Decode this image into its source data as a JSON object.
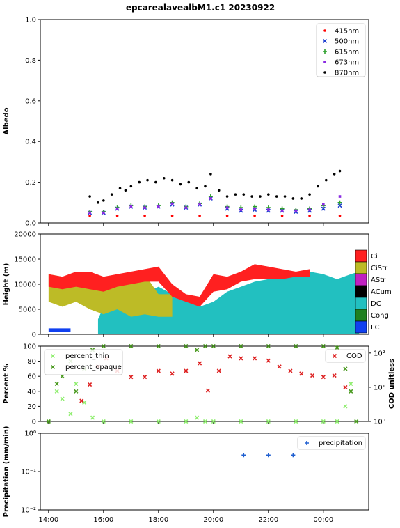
{
  "title": "epcarealavealbM1.c1 20230922",
  "colors": {
    "c415": "#ff0000",
    "c500": "#1f3fd0",
    "c615": "#2ca02c",
    "c673": "#8a2be2",
    "c870": "#000000",
    "ci": "#ff2020",
    "cistr": "#bdbb26",
    "astr": "#c020c0",
    "acum": "#000000",
    "dc": "#22c0c0",
    "cong": "#1e8020",
    "lc": "#1040f0",
    "thin": "#90ee70",
    "opaque": "#4a9a20",
    "cod": "#dd1f1f",
    "precip": "#1f5fd0"
  },
  "chart_data": [
    {
      "type": "scatter",
      "ylabel": "Albedo",
      "ylim": [
        0.0,
        1.0
      ],
      "yticks": [
        "0.0",
        "0.2",
        "0.4",
        "0.6",
        "0.8",
        "1.0"
      ],
      "legend": {
        "placement": "top-right",
        "entries": [
          "415nm",
          "500nm",
          "615nm",
          "673nm",
          "870nm"
        ]
      },
      "series": [
        {
          "name": "415nm",
          "marker": "dot",
          "x": [
            15.5,
            16.5,
            17.5,
            18.5,
            19.5,
            20.5,
            21.5,
            22.5,
            23.5,
            24.6
          ],
          "y": [
            0.035,
            0.035,
            0.035,
            0.035,
            0.035,
            0.035,
            0.035,
            0.035,
            0.035,
            0.035
          ]
        },
        {
          "name": "500nm",
          "marker": "x",
          "x": [
            15.5,
            16.0,
            16.5,
            17.0,
            17.5,
            18.0,
            18.5,
            19.0,
            19.5,
            19.9,
            20.5,
            21.0,
            21.5,
            22.0,
            22.5,
            23.0,
            23.5,
            24.0,
            24.6
          ],
          "y": [
            0.05,
            0.05,
            0.07,
            0.08,
            0.075,
            0.08,
            0.09,
            0.075,
            0.09,
            0.12,
            0.07,
            0.06,
            0.065,
            0.06,
            0.06,
            0.055,
            0.06,
            0.07,
            0.085
          ]
        },
        {
          "name": "615nm",
          "marker": "plus",
          "x": [
            15.5,
            16.0,
            16.5,
            17.0,
            17.5,
            18.0,
            18.5,
            19.0,
            19.5,
            19.9,
            20.5,
            21.0,
            21.5,
            22.0,
            22.5,
            23.0,
            23.5,
            24.0,
            24.6
          ],
          "y": [
            0.055,
            0.055,
            0.075,
            0.085,
            0.08,
            0.085,
            0.1,
            0.08,
            0.095,
            0.13,
            0.08,
            0.075,
            0.08,
            0.075,
            0.07,
            0.065,
            0.07,
            0.085,
            0.1
          ]
        },
        {
          "name": "673nm",
          "marker": "square",
          "x": [
            15.5,
            16.0,
            16.5,
            17.0,
            17.5,
            18.0,
            18.5,
            19.0,
            19.5,
            19.9,
            20.5,
            21.0,
            21.5,
            22.0,
            22.5,
            23.0,
            23.5,
            24.0,
            24.6
          ],
          "y": [
            0.05,
            0.05,
            0.07,
            0.08,
            0.075,
            0.08,
            0.095,
            0.075,
            0.09,
            0.12,
            0.075,
            0.065,
            0.07,
            0.065,
            0.06,
            0.06,
            0.065,
            0.09,
            0.13
          ]
        },
        {
          "name": "870nm",
          "marker": "dot",
          "x": [
            15.5,
            15.8,
            16.0,
            16.3,
            16.6,
            16.8,
            17.0,
            17.3,
            17.6,
            17.9,
            18.2,
            18.5,
            18.8,
            19.1,
            19.4,
            19.7,
            19.9,
            20.2,
            20.5,
            20.8,
            21.1,
            21.4,
            21.7,
            22.0,
            22.3,
            22.6,
            22.9,
            23.2,
            23.5,
            23.8,
            24.1,
            24.4,
            24.6
          ],
          "y": [
            0.13,
            0.1,
            0.11,
            0.14,
            0.17,
            0.16,
            0.18,
            0.2,
            0.21,
            0.2,
            0.22,
            0.21,
            0.19,
            0.2,
            0.17,
            0.18,
            0.24,
            0.16,
            0.13,
            0.14,
            0.14,
            0.13,
            0.13,
            0.14,
            0.13,
            0.13,
            0.12,
            0.12,
            0.14,
            0.18,
            0.21,
            0.24,
            0.255
          ]
        }
      ]
    },
    {
      "type": "area",
      "ylabel": "Height (m)",
      "ylim": [
        0,
        20000
      ],
      "yticks": [
        "0",
        "5000",
        "10000",
        "15000",
        "20000"
      ],
      "legend": {
        "placement": "right",
        "entries": [
          "Ci",
          "CiStr",
          "AStr",
          "ACum",
          "DC",
          "Cong",
          "LC"
        ]
      },
      "layers": [
        {
          "name": "DC",
          "x": [
            15.8,
            16.2,
            16.6,
            17.0,
            17.2,
            17.6,
            18.0,
            18.5,
            19.0,
            19.5,
            20.0,
            20.5,
            21.0,
            21.5,
            22.0,
            22.5,
            23.0,
            23.5,
            24.0,
            24.5,
            25.0,
            25.3
          ],
          "base": [
            0,
            0,
            0,
            0,
            0,
            0,
            0,
            0,
            0,
            0,
            0,
            0,
            0,
            0,
            0,
            0,
            0,
            0,
            0,
            0,
            0,
            0
          ],
          "top": [
            3000,
            8000,
            9000,
            5000,
            9000,
            8500,
            9500,
            8000,
            7000,
            5500,
            6500,
            8500,
            9500,
            10500,
            11000,
            11500,
            12000,
            12500,
            12000,
            11000,
            12000,
            12500
          ]
        },
        {
          "name": "CiStr",
          "x": [
            14.0,
            14.5,
            15.0,
            15.5,
            16.0,
            16.5,
            17.0,
            17.5,
            18.0,
            18.5
          ],
          "base": [
            6500,
            5500,
            6500,
            5000,
            4000,
            5000,
            3500,
            4000,
            3500,
            3500
          ],
          "top": [
            12000,
            11500,
            11000,
            9500,
            9000,
            10000,
            11500,
            12000,
            8000,
            8000
          ]
        },
        {
          "name": "Ci",
          "x": [
            14.0,
            14.5,
            15.0,
            15.5,
            16.0,
            16.5,
            17.0,
            17.5,
            18.0,
            18.5,
            19.0,
            19.5,
            20.0,
            20.5,
            21.0,
            21.5,
            22.0,
            22.5,
            23.0,
            23.5
          ],
          "base": [
            9500,
            9000,
            9500,
            9000,
            8500,
            9500,
            10000,
            10500,
            10500,
            7500,
            6500,
            5500,
            8500,
            9000,
            10500,
            11000,
            11000,
            11000,
            11500,
            11500
          ],
          "top": [
            12000,
            11500,
            12500,
            12500,
            11500,
            12000,
            12500,
            13000,
            13500,
            10000,
            8000,
            7500,
            12000,
            11500,
            12500,
            14000,
            13500,
            13000,
            12500,
            13000
          ]
        },
        {
          "name": "LC",
          "x": [
            14.0,
            14.8
          ],
          "base": [
            500,
            500
          ],
          "top": [
            1200,
            1200
          ]
        }
      ]
    },
    {
      "type": "line",
      "ylabel": "Percent %",
      "y2label": "COD unitless",
      "ylim": [
        0,
        100
      ],
      "yticks": [
        "0",
        "20",
        "40",
        "60",
        "80",
        "100"
      ],
      "y2ticks": [
        "10⁰",
        "10¹",
        "10²"
      ],
      "legend": {
        "placement": "top-left",
        "entries": [
          "percent_thin",
          "percent_opaque"
        ]
      },
      "legend2": {
        "placement": "top-right",
        "entries": [
          "COD"
        ]
      },
      "series": [
        {
          "name": "percent_thin",
          "x": [
            14.0,
            14.3,
            14.5,
            14.8,
            15.0,
            15.3,
            15.6,
            16.0,
            17.0,
            18.0,
            19.0,
            19.4,
            19.7,
            20.0,
            21.0,
            22.0,
            23.0,
            24.0,
            24.5,
            24.8,
            25.0,
            25.2
          ],
          "y": [
            0,
            40,
            30,
            10,
            50,
            25,
            5,
            0,
            0,
            0,
            0,
            5,
            0,
            0,
            0,
            0,
            0,
            0,
            0,
            20,
            50,
            0
          ]
        },
        {
          "name": "percent_opaque",
          "x": [
            14.0,
            14.3,
            14.5,
            14.8,
            15.0,
            15.3,
            15.6,
            16.0,
            17.0,
            18.0,
            19.0,
            19.4,
            19.7,
            20.0,
            21.0,
            22.0,
            23.0,
            24.0,
            24.5,
            24.8,
            25.0,
            25.2
          ],
          "y": [
            0,
            50,
            60,
            80,
            40,
            70,
            95,
            100,
            100,
            100,
            100,
            95,
            100,
            100,
            100,
            100,
            100,
            100,
            98,
            70,
            40,
            0
          ]
        },
        {
          "name": "COD",
          "axis": "right",
          "x": [
            15.2,
            15.5,
            15.8,
            16.1,
            16.5,
            17.0,
            17.5,
            18.0,
            18.5,
            19.0,
            19.5,
            19.8,
            20.2,
            20.6,
            21.0,
            21.5,
            22.0,
            22.4,
            22.8,
            23.2,
            23.6,
            24.0,
            24.4,
            24.8
          ],
          "y": [
            4,
            12,
            40,
            70,
            30,
            20,
            20,
            30,
            25,
            30,
            50,
            8,
            30,
            80,
            70,
            70,
            60,
            40,
            30,
            25,
            22,
            20,
            22,
            10
          ]
        }
      ]
    },
    {
      "type": "scatter",
      "ylabel": "Precipitation (mm/min)",
      "yscale": "log",
      "ylim": [
        0.01,
        1
      ],
      "yticks": [
        "10⁻²",
        "10⁻¹",
        "10⁰"
      ],
      "legend": {
        "placement": "top-right",
        "entries": [
          "precipitation"
        ]
      },
      "series": [
        {
          "name": "precipitation",
          "marker": "plus",
          "x": [
            21.1,
            22.0,
            22.9
          ],
          "y": [
            0.27,
            0.27,
            0.27
          ]
        }
      ]
    }
  ],
  "xaxis": {
    "ticks": [
      "14:00",
      "16:00",
      "18:00",
      "20:00",
      "22:00",
      "00:00"
    ]
  }
}
